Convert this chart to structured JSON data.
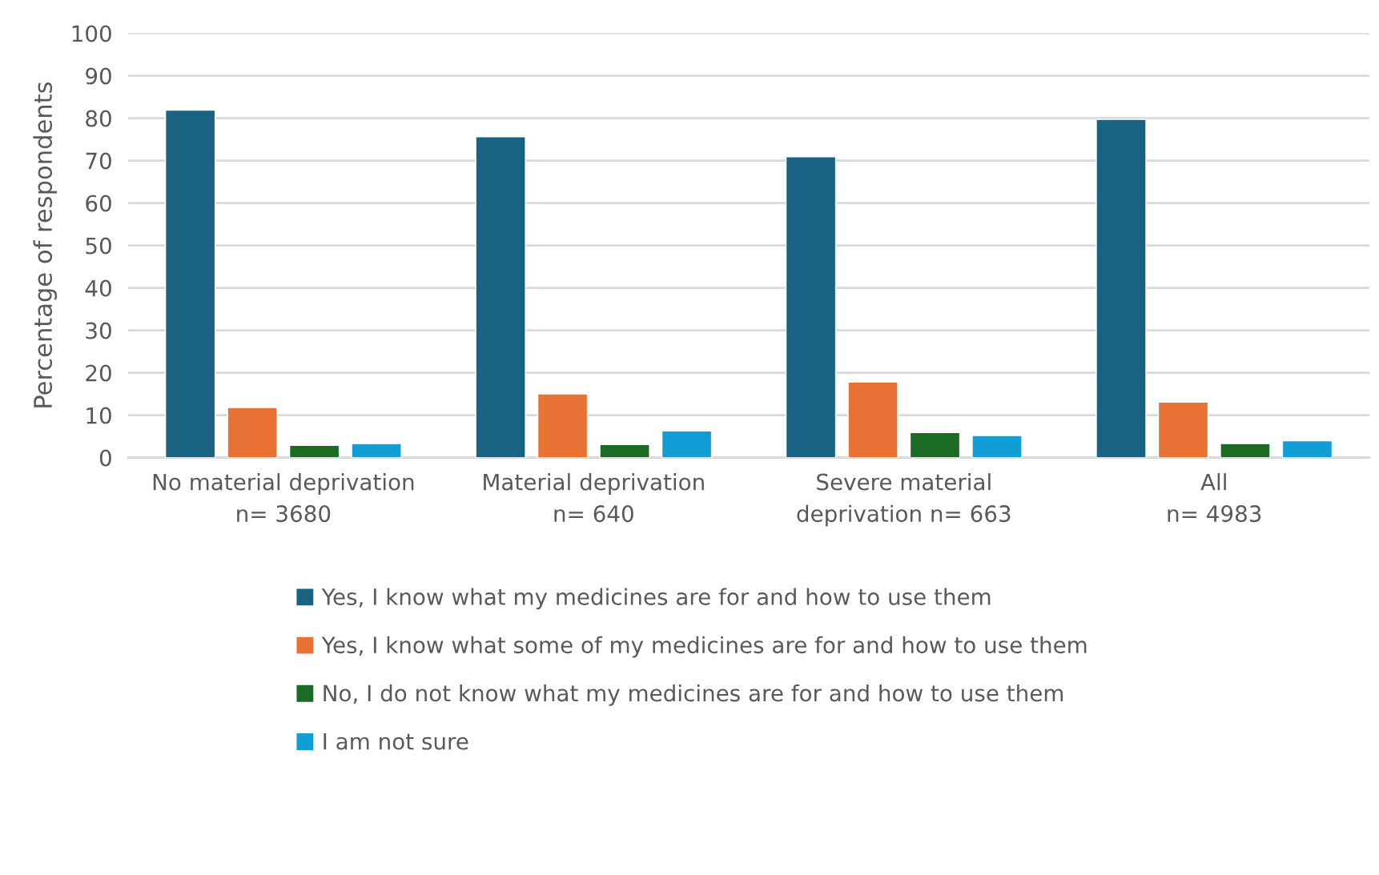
{
  "chart_data": {
    "type": "bar",
    "ylabel": "Percentage of respondents",
    "categories": [
      "No material deprivation\nn= 3680",
      "Material deprivation\nn= 640",
      "Severe material\ndeprivation n= 663",
      "All\nn= 4983"
    ],
    "series": [
      {
        "name": "Yes, I know what my medicines are for and how to use them",
        "color": "#1a6282",
        "values": [
          81.9,
          75.6,
          70.9,
          79.7
        ]
      },
      {
        "name": "Yes, I know what some of my medicines are for and how to use them",
        "color": "#e87234",
        "values": [
          11.8,
          15.0,
          17.8,
          13.1
        ]
      },
      {
        "name": "No, I do not know what my medicines are for and how to use them",
        "color": "#1c6b24",
        "values": [
          2.9,
          3.1,
          5.9,
          3.3
        ]
      },
      {
        "name": "I am not sure",
        "color": "#119ed7",
        "values": [
          3.3,
          6.3,
          5.2,
          4.0
        ]
      }
    ],
    "ylim": [
      0,
      100
    ],
    "yticks": [
      0,
      10,
      20,
      30,
      40,
      50,
      60,
      70,
      80,
      90,
      100
    ],
    "grid": "y",
    "legend": "bottom"
  }
}
